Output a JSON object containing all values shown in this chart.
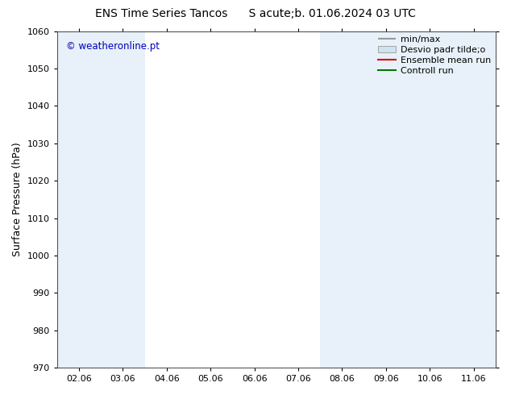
{
  "title": "ENS Time Series Tancos      S acute;b. 01.06.2024 03 UTC",
  "ylabel": "Surface Pressure (hPa)",
  "watermark": "© weatheronline.pt",
  "watermark_color": "#0000bb",
  "ylim": [
    970,
    1060
  ],
  "yticks": [
    970,
    980,
    990,
    1000,
    1010,
    1020,
    1030,
    1040,
    1050,
    1060
  ],
  "xtick_labels": [
    "02.06",
    "03.06",
    "04.06",
    "05.06",
    "06.06",
    "07.06",
    "08.06",
    "09.06",
    "10.06",
    "11.06"
  ],
  "bg_color": "#ffffff",
  "plot_bg_color": "#ffffff",
  "shade_color": "#dae8f5",
  "shade_alpha": 0.6,
  "legend_line1_label": "min/max",
  "legend_line1_color": "#999999",
  "legend_patch_label": "Desvio padr tilde;o",
  "legend_patch_color": "#d0e4f0",
  "legend_line3_label": "Ensemble mean run",
  "legend_line3_color": "#dd0000",
  "legend_line4_label": "Controll run",
  "legend_line4_color": "#007700",
  "title_fontsize": 10,
  "tick_fontsize": 8,
  "ylabel_fontsize": 9,
  "legend_fontsize": 8
}
